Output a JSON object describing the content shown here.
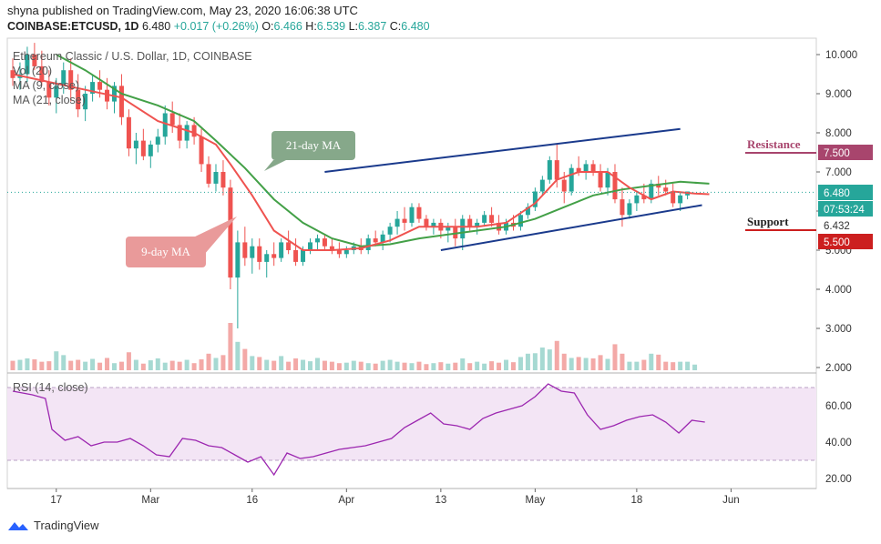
{
  "header": {
    "published": "shyna published on TradingView.com, May 23, 2020 16:06:38 UTC",
    "symbol": "COINBASE:ETCUSD, 1D",
    "last": "6.480",
    "change": "+0.017 (+0.26%)",
    "o_label": "O:",
    "o": "6.466",
    "h_label": "H:",
    "h": "6.539",
    "l_label": "L:",
    "l": "6.387",
    "c_label": "C:",
    "c": "6.480"
  },
  "legend": {
    "title": "Ethereum Classic / U.S. Dollar, 1D, COINBASE",
    "vol": "Vol (20)",
    "ma9": "MA (9, close)",
    "ma21": "MA (21, close)",
    "rsi": "RSI (14, close)"
  },
  "annotations": {
    "ma21_label": "21-day MA",
    "ma9_label": "9-day MA",
    "resistance": "Resistance",
    "support": "Support"
  },
  "price_tags": {
    "resistance": "7.500",
    "current": "6.480",
    "countdown": "07:53:24",
    "ma": "6.432",
    "support": "5.500"
  },
  "footer": {
    "brand": "TradingView"
  },
  "colors": {
    "up": "#26a69a",
    "down": "#ef5350",
    "ma9": "#ef5350",
    "ma21": "#43a047",
    "channel": "#1a3a8c",
    "rsi": "#9c27b0",
    "rsi_band": "#f3e5f5",
    "resistance": "#a8456d",
    "support": "#cc1f1f",
    "ma21_callout": "#86a88a",
    "ma9_callout": "#e99a9a"
  },
  "chart_data": {
    "type": "candlestick",
    "y_ticks": [
      "10.000",
      "9.000",
      "8.000",
      "7.000",
      "6.000",
      "5.000",
      "4.000",
      "3.000",
      "2.000"
    ],
    "price_range": [
      2.0,
      10.5
    ],
    "x_ticks": [
      "17",
      "Mar",
      "16",
      "Apr",
      "13",
      "May",
      "18",
      "Jun"
    ],
    "x_tick_index": [
      6,
      19,
      33,
      46,
      59,
      72,
      86,
      99
    ],
    "candles": [
      [
        9.6,
        9.9,
        9.2,
        9.4
      ],
      [
        9.4,
        9.8,
        9.1,
        9.5
      ],
      [
        9.5,
        10.2,
        9.3,
        10.0
      ],
      [
        10.0,
        10.3,
        9.6,
        9.7
      ],
      [
        9.7,
        10.1,
        9.2,
        9.3
      ],
      [
        9.3,
        9.6,
        8.7,
        8.9
      ],
      [
        8.9,
        9.4,
        8.5,
        9.2
      ],
      [
        9.2,
        9.8,
        9.0,
        9.6
      ],
      [
        9.6,
        9.9,
        8.8,
        9.1
      ],
      [
        9.1,
        9.5,
        8.4,
        8.6
      ],
      [
        8.6,
        9.2,
        8.3,
        9.0
      ],
      [
        9.0,
        9.5,
        8.8,
        9.3
      ],
      [
        9.3,
        9.6,
        8.9,
        9.1
      ],
      [
        9.1,
        9.4,
        8.6,
        8.8
      ],
      [
        8.8,
        9.3,
        8.5,
        9.2
      ],
      [
        9.2,
        9.5,
        8.2,
        8.4
      ],
      [
        8.4,
        8.6,
        7.4,
        7.6
      ],
      [
        7.6,
        8.0,
        7.2,
        7.8
      ],
      [
        7.8,
        8.1,
        7.3,
        7.4
      ],
      [
        7.4,
        7.8,
        7.1,
        7.7
      ],
      [
        7.7,
        8.1,
        7.5,
        7.9
      ],
      [
        7.9,
        8.7,
        7.7,
        8.5
      ],
      [
        8.5,
        8.8,
        8.0,
        8.2
      ],
      [
        8.2,
        8.5,
        7.6,
        7.8
      ],
      [
        7.8,
        8.3,
        7.6,
        8.2
      ],
      [
        8.2,
        8.4,
        7.7,
        7.9
      ],
      [
        7.9,
        8.1,
        7.0,
        7.2
      ],
      [
        7.2,
        7.4,
        6.6,
        6.7
      ],
      [
        6.7,
        7.2,
        6.5,
        7.0
      ],
      [
        7.0,
        7.3,
        6.4,
        6.6
      ],
      [
        6.6,
        6.8,
        4.0,
        4.3
      ],
      [
        4.3,
        5.5,
        3.0,
        5.2
      ],
      [
        5.2,
        5.6,
        4.6,
        4.8
      ],
      [
        4.8,
        5.3,
        4.4,
        5.1
      ],
      [
        5.1,
        5.3,
        4.5,
        4.7
      ],
      [
        4.7,
        5.0,
        4.3,
        4.9
      ],
      [
        4.9,
        5.2,
        4.6,
        4.8
      ],
      [
        4.8,
        5.3,
        4.7,
        5.2
      ],
      [
        5.2,
        5.5,
        4.9,
        5.0
      ],
      [
        5.0,
        5.3,
        4.6,
        4.7
      ],
      [
        4.7,
        5.1,
        4.6,
        5.0
      ],
      [
        5.0,
        5.3,
        4.9,
        5.2
      ],
      [
        5.2,
        5.4,
        5.0,
        5.3
      ],
      [
        5.3,
        5.4,
        5.0,
        5.1
      ],
      [
        5.1,
        5.3,
        4.9,
        5.0
      ],
      [
        5.0,
        5.2,
        4.8,
        4.9
      ],
      [
        4.9,
        5.1,
        4.8,
        5.0
      ],
      [
        5.0,
        5.2,
        4.9,
        5.1
      ],
      [
        5.1,
        5.3,
        4.9,
        5.0
      ],
      [
        5.0,
        5.4,
        4.9,
        5.3
      ],
      [
        5.3,
        5.5,
        5.1,
        5.2
      ],
      [
        5.2,
        5.5,
        5.0,
        5.4
      ],
      [
        5.4,
        5.7,
        5.2,
        5.6
      ],
      [
        5.6,
        6.0,
        5.4,
        5.8
      ],
      [
        5.8,
        6.1,
        5.5,
        5.7
      ],
      [
        5.7,
        6.2,
        5.6,
        6.1
      ],
      [
        6.1,
        6.2,
        5.7,
        5.8
      ],
      [
        5.8,
        5.9,
        5.5,
        5.6
      ],
      [
        5.6,
        5.8,
        5.4,
        5.7
      ],
      [
        5.7,
        5.8,
        5.3,
        5.5
      ],
      [
        5.5,
        5.7,
        5.2,
        5.6
      ],
      [
        5.6,
        5.8,
        5.1,
        5.3
      ],
      [
        5.3,
        5.9,
        5.0,
        5.8
      ],
      [
        5.8,
        5.9,
        5.5,
        5.6
      ],
      [
        5.6,
        5.8,
        5.4,
        5.7
      ],
      [
        5.7,
        6.0,
        5.6,
        5.9
      ],
      [
        5.9,
        6.1,
        5.6,
        5.7
      ],
      [
        5.7,
        5.9,
        5.4,
        5.5
      ],
      [
        5.5,
        5.8,
        5.4,
        5.7
      ],
      [
        5.7,
        5.9,
        5.5,
        5.6
      ],
      [
        5.6,
        6.0,
        5.5,
        5.9
      ],
      [
        5.9,
        6.2,
        5.8,
        6.1
      ],
      [
        6.1,
        6.6,
        6.0,
        6.5
      ],
      [
        6.5,
        6.9,
        6.4,
        6.8
      ],
      [
        6.8,
        7.4,
        6.7,
        7.3
      ],
      [
        7.3,
        7.7,
        6.6,
        6.8
      ],
      [
        6.8,
        7.0,
        6.2,
        6.5
      ],
      [
        6.5,
        7.2,
        6.4,
        7.1
      ],
      [
        7.1,
        7.4,
        6.9,
        7.0
      ],
      [
        7.0,
        7.3,
        6.8,
        7.2
      ],
      [
        7.2,
        7.3,
        6.9,
        7.0
      ],
      [
        7.0,
        7.2,
        6.5,
        6.6
      ],
      [
        6.6,
        7.1,
        6.4,
        7.0
      ],
      [
        7.0,
        7.2,
        6.2,
        6.3
      ],
      [
        6.3,
        6.6,
        5.6,
        5.9
      ],
      [
        5.9,
        6.3,
        5.8,
        6.2
      ],
      [
        6.2,
        6.5,
        6.0,
        6.4
      ],
      [
        6.4,
        6.7,
        6.2,
        6.3
      ],
      [
        6.3,
        6.8,
        6.2,
        6.7
      ],
      [
        6.7,
        6.9,
        6.4,
        6.6
      ],
      [
        6.6,
        6.8,
        6.4,
        6.5
      ],
      [
        6.5,
        6.7,
        6.1,
        6.2
      ],
      [
        6.2,
        6.5,
        6.0,
        6.4
      ],
      [
        6.4,
        6.5,
        6.3,
        6.5
      ]
    ],
    "ma9": [
      [
        0,
        9.5
      ],
      [
        5,
        9.3
      ],
      [
        10,
        9.1
      ],
      [
        15,
        8.9
      ],
      [
        20,
        8.3
      ],
      [
        25,
        8.0
      ],
      [
        28,
        7.7
      ],
      [
        30,
        7.2
      ],
      [
        33,
        6.4
      ],
      [
        36,
        5.5
      ],
      [
        40,
        5.0
      ],
      [
        44,
        5.0
      ],
      [
        48,
        5.05
      ],
      [
        52,
        5.25
      ],
      [
        56,
        5.6
      ],
      [
        60,
        5.6
      ],
      [
        64,
        5.6
      ],
      [
        68,
        5.7
      ],
      [
        72,
        6.2
      ],
      [
        75,
        6.8
      ],
      [
        78,
        7.0
      ],
      [
        82,
        7.0
      ],
      [
        85,
        6.6
      ],
      [
        88,
        6.3
      ],
      [
        91,
        6.5
      ],
      [
        94,
        6.45
      ],
      [
        96,
        6.43
      ]
    ],
    "ma21": [
      [
        6,
        10.0
      ],
      [
        10,
        9.6
      ],
      [
        15,
        9.0
      ],
      [
        20,
        8.7
      ],
      [
        25,
        8.3
      ],
      [
        28,
        7.8
      ],
      [
        32,
        7.1
      ],
      [
        36,
        6.3
      ],
      [
        40,
        5.7
      ],
      [
        44,
        5.3
      ],
      [
        48,
        5.1
      ],
      [
        52,
        5.15
      ],
      [
        56,
        5.3
      ],
      [
        60,
        5.4
      ],
      [
        64,
        5.5
      ],
      [
        68,
        5.6
      ],
      [
        72,
        5.8
      ],
      [
        76,
        6.1
      ],
      [
        80,
        6.4
      ],
      [
        84,
        6.55
      ],
      [
        88,
        6.65
      ],
      [
        92,
        6.75
      ],
      [
        96,
        6.7
      ]
    ],
    "channel_upper": [
      [
        43,
        7.0
      ],
      [
        92,
        8.1
      ]
    ],
    "channel_lower": [
      [
        59,
        5.0
      ],
      [
        95,
        6.15
      ]
    ],
    "volume": [
      2,
      2.2,
      2.5,
      2.3,
      1.8,
      1.9,
      4,
      3.2,
      2,
      2.2,
      1.8,
      2.4,
      1.6,
      2.6,
      1.5,
      1.8,
      3.8,
      2.2,
      1.4,
      2.1,
      2.5,
      1.6,
      2,
      1.8,
      2.2,
      1.5,
      2.3,
      3.5,
      2.6,
      3.2,
      10,
      6,
      4.5,
      3,
      2.8,
      2.2,
      2,
      3,
      1.8,
      2.5,
      2.2,
      1.9,
      2.6,
      2,
      1.8,
      1.5,
      1.6,
      2,
      1.8,
      1.5,
      1.4,
      2,
      2.2,
      1.8,
      1.6,
      1.5,
      1.8,
      1.3,
      1.5,
      1.7,
      1.4,
      1.6,
      2.5,
      1.5,
      1.8,
      1.4,
      1.9,
      1.6,
      2.2,
      1.7,
      2.8,
      3.5,
      3.6,
      4.8,
      4.4,
      6.2,
      3.5,
      2.6,
      2.8,
      2.6,
      2.5,
      3.2,
      2.4,
      5.5,
      3.5,
      1.8,
      1.8,
      2.2,
      3.5,
      3.3,
      1.8,
      1.7,
      1.8,
      1.8,
      1.2
    ],
    "rsi_ticks": [
      "60.00",
      "40.00",
      "20.00"
    ],
    "rsi_range": [
      15,
      75
    ],
    "rsi_band": [
      30,
      70
    ],
    "rsi": [
      [
        0,
        68
      ],
      [
        3,
        66
      ],
      [
        5,
        64
      ],
      [
        6,
        47
      ],
      [
        8,
        41
      ],
      [
        10,
        43
      ],
      [
        12,
        38
      ],
      [
        14,
        40
      ],
      [
        16,
        40
      ],
      [
        18,
        42
      ],
      [
        20,
        38
      ],
      [
        22,
        33
      ],
      [
        24,
        32
      ],
      [
        26,
        42
      ],
      [
        28,
        41
      ],
      [
        30,
        38
      ],
      [
        32,
        37
      ],
      [
        34,
        33
      ],
      [
        36,
        29
      ],
      [
        38,
        32
      ],
      [
        40,
        22
      ],
      [
        42,
        34
      ],
      [
        44,
        31
      ],
      [
        46,
        32
      ],
      [
        48,
        34
      ],
      [
        50,
        36
      ],
      [
        52,
        37
      ],
      [
        54,
        38
      ],
      [
        56,
        40
      ],
      [
        58,
        42
      ],
      [
        60,
        48
      ],
      [
        62,
        52
      ],
      [
        64,
        56
      ],
      [
        66,
        50
      ],
      [
        68,
        49
      ],
      [
        70,
        47
      ],
      [
        72,
        53
      ],
      [
        74,
        56
      ],
      [
        76,
        58
      ],
      [
        78,
        60
      ],
      [
        80,
        65
      ],
      [
        82,
        72
      ],
      [
        84,
        68
      ],
      [
        86,
        67
      ],
      [
        88,
        55
      ],
      [
        90,
        47
      ],
      [
        92,
        49
      ],
      [
        94,
        52
      ],
      [
        96,
        54
      ],
      [
        98,
        55
      ],
      [
        100,
        51
      ],
      [
        102,
        45
      ],
      [
        104,
        52
      ],
      [
        106,
        51
      ]
    ]
  }
}
